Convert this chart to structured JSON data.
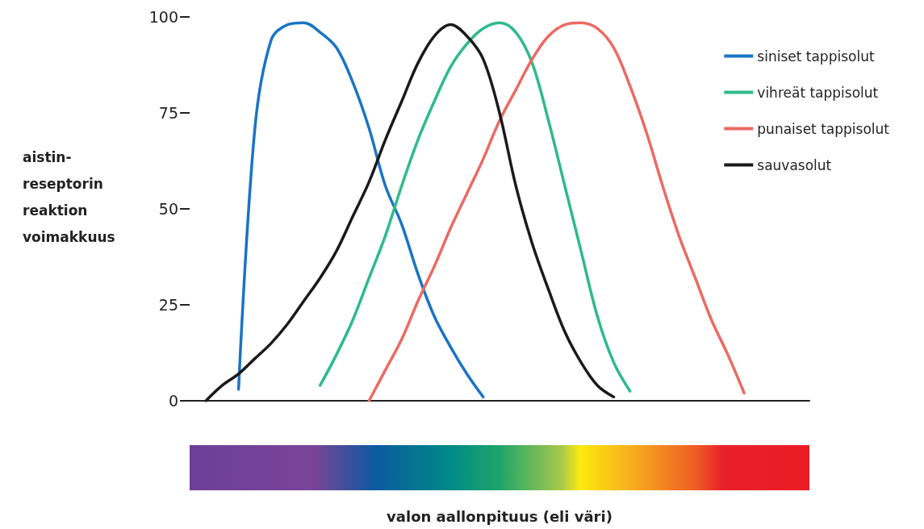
{
  "chart_data": {
    "type": "line",
    "ylabel": "aistin-\nreseptorin\nreaktion\nvoimakkuus",
    "annotations": [
      "valon aallonpituus (eli väri)"
    ],
    "categories": [
      null,
      null,
      null,
      null,
      null,
      null,
      null,
      null,
      null,
      null,
      null,
      null,
      null,
      null,
      null,
      null,
      null,
      null,
      null,
      null,
      null,
      null,
      null,
      null,
      null,
      null,
      null,
      null,
      null,
      null,
      null,
      null,
      null,
      null,
      null,
      null,
      null,
      null,
      null
    ],
    "series": [
      {
        "name": "siniset tappisolut",
        "color": "#1a74c4",
        "values": [
          null,
          null,
          null,
          3,
          71,
          94,
          98,
          98.5,
          96,
          92,
          83,
          71,
          56,
          46,
          33,
          22,
          14,
          7,
          1,
          null,
          null,
          null,
          null,
          null,
          null,
          null,
          null,
          null,
          null,
          null,
          null,
          null,
          null,
          null,
          null,
          null,
          null,
          null,
          null
        ]
      },
      {
        "name": "vihreät tappisolut",
        "color": "#2dbb8a",
        "values": [
          null,
          null,
          null,
          null,
          null,
          null,
          null,
          null,
          4,
          12,
          21,
          32,
          43,
          56,
          68,
          78,
          87,
          93,
          97,
          98.5,
          96,
          88,
          73,
          56,
          39,
          22,
          10,
          2.5,
          null,
          null,
          null,
          null,
          null,
          null,
          null,
          null,
          null,
          null,
          null
        ]
      },
      {
        "name": "punaiset tappisolut",
        "color": "#ec6a63",
        "values": [
          null,
          null,
          null,
          null,
          null,
          null,
          null,
          null,
          null,
          null,
          null,
          0,
          8,
          16,
          26,
          35,
          45,
          54,
          63,
          73,
          81,
          89,
          95,
          98,
          98.5,
          97,
          92,
          82,
          70,
          56,
          43,
          32,
          21,
          12,
          2,
          null,
          null,
          null,
          null
        ]
      },
      {
        "name": "sauvasolut",
        "color": "#1a1a1a",
        "values": [
          null,
          0,
          4,
          7,
          11,
          15,
          20,
          26,
          32,
          39,
          48,
          57,
          68,
          78,
          88,
          95,
          98,
          95,
          89,
          75,
          56,
          41,
          29,
          18,
          10,
          4,
          1,
          null,
          null,
          null,
          null,
          null,
          null,
          null,
          null,
          null,
          null,
          null,
          null
        ]
      }
    ],
    "ylim": [
      0,
      100
    ],
    "yticks": [
      0,
      25,
      50,
      75,
      100
    ],
    "grid": false,
    "legend": "top right",
    "marker": "none"
  }
}
